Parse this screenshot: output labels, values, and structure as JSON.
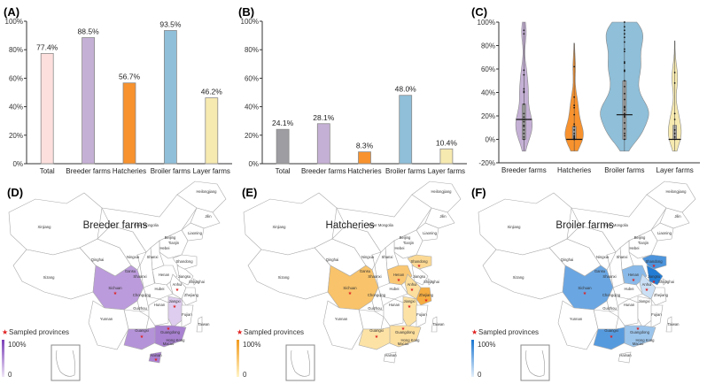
{
  "chart_data": [
    {
      "panel": "(A)",
      "type": "bar",
      "categories": [
        "Total",
        "Breeder farms",
        "Hatcheries",
        "Broiler farms",
        "Layer farms"
      ],
      "values": [
        77.4,
        88.5,
        56.7,
        93.5,
        46.2
      ],
      "labels": [
        "77.4%",
        "88.5%",
        "56.7%",
        "93.5%",
        "46.2%"
      ],
      "colors": [
        "#fde0dd",
        "#c5b0d5",
        "#f7922e",
        "#8fbfd9",
        "#f7eab0"
      ],
      "yticks": [
        "0%",
        "20%",
        "40%",
        "60%",
        "80%",
        "100%"
      ],
      "ylim": [
        0,
        100
      ],
      "xlabel": "",
      "ylabel": "",
      "title": ""
    },
    {
      "panel": "(B)",
      "type": "bar",
      "categories": [
        "Total",
        "Breeder farms",
        "Hatcheries",
        "Broiler farms",
        "Layer farms"
      ],
      "values": [
        24.1,
        28.1,
        8.3,
        48.0,
        10.4
      ],
      "labels": [
        "24.1%",
        "28.1%",
        "8.3%",
        "48.0%",
        "10.4%"
      ],
      "colors": [
        "#9e9ea2",
        "#c5b0d5",
        "#f7922e",
        "#8fbfd9",
        "#f7eab0"
      ],
      "yticks": [
        "0%",
        "20%",
        "40%",
        "60%",
        "80%",
        "100%"
      ],
      "ylim": [
        0,
        100
      ],
      "xlabel": "",
      "ylabel": "",
      "title": ""
    },
    {
      "panel": "(C)",
      "type": "violin",
      "categories": [
        "Breeder farms",
        "Hatcheries",
        "Broiler farms",
        "Layer farms"
      ],
      "colors": [
        "#c5b0d5",
        "#f7922e",
        "#8fbfd9",
        "#f7eab0"
      ],
      "yticks": [
        "-20%",
        "0%",
        "20%",
        "40%",
        "60%",
        "80%",
        "100%"
      ],
      "ylim": [
        -20,
        100
      ],
      "series": [
        {
          "name": "Breeder farms",
          "min": -10,
          "max": 100,
          "median": 17,
          "q1": 0,
          "q3": 30,
          "points": [
            0,
            2,
            5,
            8,
            11,
            12,
            15,
            17,
            19,
            22,
            30,
            40,
            41,
            43,
            55,
            59,
            90,
            93
          ]
        },
        {
          "name": "Hatcheries",
          "min": -10,
          "max": 82,
          "median": 0,
          "q1": 0,
          "q3": 11,
          "points": [
            0,
            0,
            0,
            1,
            2,
            3,
            5,
            8,
            11,
            13,
            21,
            27,
            29,
            36,
            62
          ]
        },
        {
          "name": "Broiler farms",
          "min": -10,
          "max": 100,
          "median": 21,
          "q1": 0,
          "q3": 50,
          "points": [
            0,
            3,
            5,
            9,
            14,
            19,
            20,
            22,
            25,
            27,
            28,
            34,
            39,
            45,
            50,
            58,
            59,
            65,
            66,
            75,
            77,
            83,
            87,
            90,
            93,
            96,
            100
          ]
        },
        {
          "name": "Layer farms",
          "min": -10,
          "max": 84,
          "median": 0,
          "q1": 0,
          "q3": 12,
          "points": [
            0,
            2,
            5,
            8,
            17,
            22,
            48,
            57
          ]
        }
      ],
      "xlabel": "",
      "ylabel": "",
      "title": ""
    }
  ],
  "maps": [
    {
      "panel": "(D)",
      "title": "Breeder farms",
      "accent": "#7b3fb8",
      "light": "#efe6f7",
      "legend_marker": "Sampled provinces",
      "legend_max": "100%",
      "legend_min": "0",
      "shaded": {
        "Sichuan": 0.45,
        "Guangxi": 0.5,
        "Guangdong": 0.6,
        "Jiangxi": 0.15,
        "Hainan": 0.6
      },
      "sampled": [
        "Sichuan",
        "Guangxi",
        "Guangdong",
        "Jiangxi",
        "Anhui",
        "Hainan"
      ]
    },
    {
      "panel": "(E)",
      "title": "Hatcheries",
      "accent": "#f29a1e",
      "light": "#fff4c7",
      "legend_marker": "Sampled provinces",
      "legend_max": "100%",
      "legend_min": "0",
      "shaded": {
        "Sichuan": 0.55,
        "Henan": 0.5,
        "Shandong": 0.3,
        "Anhui": 0.25,
        "Zhejiang": 0.8,
        "Jiangxi": 0.2,
        "Guangxi": 0.2,
        "Guangdong": 0.25
      },
      "sampled": [
        "Sichuan",
        "Henan",
        "Shandong",
        "Anhui",
        "Zhejiang",
        "Jiangxi",
        "Guangxi",
        "Guangdong"
      ]
    },
    {
      "panel": "(F)",
      "title": "Broiler farms",
      "accent": "#1976d2",
      "light": "#e3effa",
      "legend_marker": "Sampled provinces",
      "legend_max": "100%",
      "legend_min": "0",
      "shaded": {
        "Sichuan": 0.6,
        "Henan": 0.45,
        "Shandong": 0.75,
        "Jiangsu": 0.95,
        "Anhui": 0.12,
        "Guangxi": 0.7,
        "Guangdong": 0.35
      },
      "sampled": [
        "Sichuan",
        "Henan",
        "Shandong",
        "Jiangsu",
        "Anhui",
        "Guangxi",
        "Guangdong"
      ]
    }
  ],
  "province_labels": [
    "Heilongjiang",
    "Jilin",
    "Liaoning",
    "Xinjiang",
    "Inner Mongolia",
    "Beijing",
    "Tianjin",
    "Hebei",
    "Qinghai",
    "Ningxia",
    "Shanxi",
    "Shandong",
    "Gansu",
    "Shaanxi",
    "Henan",
    "Jiangsu",
    "Xizang",
    "Sichuan",
    "Hubei",
    "Anhui",
    "Shanghai",
    "Chongqing",
    "Zhejiang",
    "Guizhou",
    "Hunan",
    "Jiangxi",
    "Fujian",
    "Yunnan",
    "Guangxi",
    "Guangdong",
    "Taiwan",
    "Hong Kong",
    "Macao",
    "Hainan"
  ]
}
